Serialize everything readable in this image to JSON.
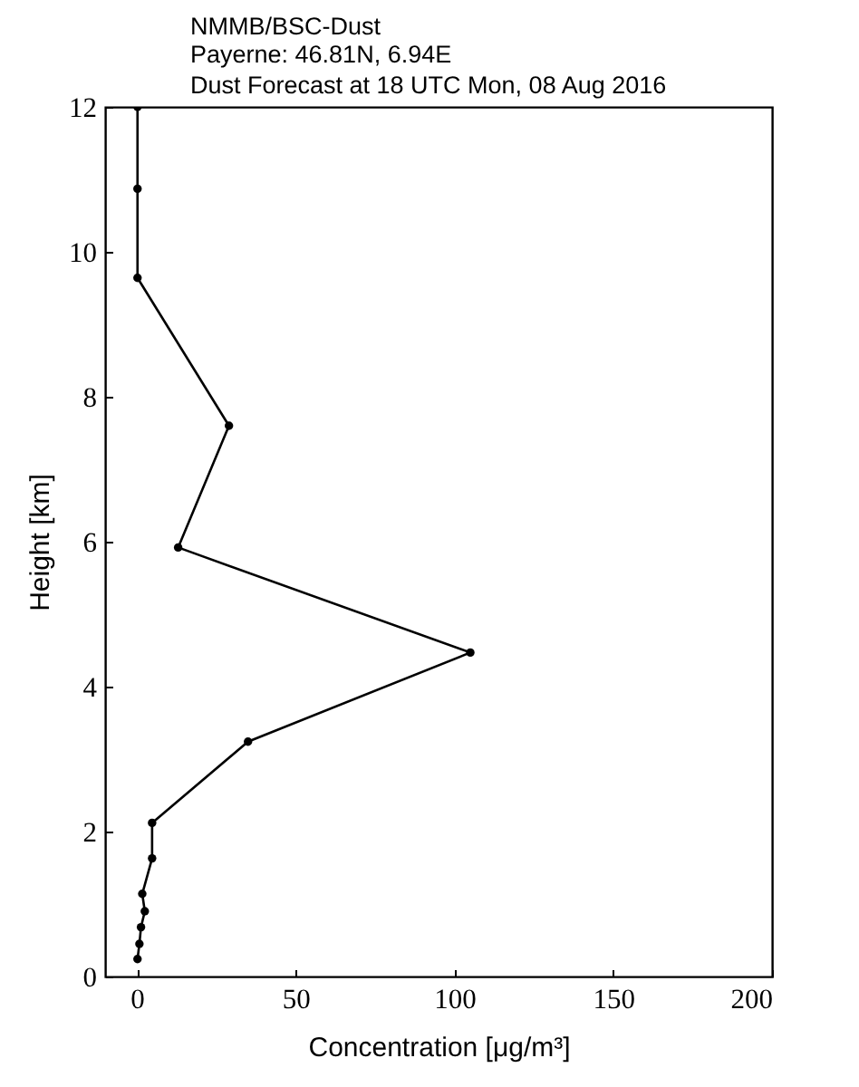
{
  "chart_data": {
    "type": "line",
    "title": "NMMB/BSC-Dust",
    "subtitle": "Payerne: 46.81N, 6.94E\nDust Forecast at 18 UTC Mon, 08 Aug 2016",
    "xlabel": "Concentration [μg/m³]",
    "ylabel": "Height [km]",
    "series": [
      {
        "color": "#000000",
        "x": [
          0.2,
          0.8,
          1.3,
          2.5,
          1.7,
          4.8,
          4.8,
          35,
          105,
          13,
          29,
          0.2,
          0.2,
          0.2
        ],
        "values": [
          0.24,
          0.45,
          0.68,
          0.9,
          1.14,
          1.63,
          2.12,
          3.24,
          4.47,
          5.92,
          7.6,
          9.64,
          10.87,
          12
        ]
      }
    ],
    "xlim": [
      -10,
      200
    ],
    "ylim": [
      0,
      12
    ],
    "xticks": [
      0,
      50,
      100,
      150,
      200
    ],
    "yticks": [
      0,
      2,
      4,
      6,
      8,
      10,
      12
    ],
    "grid": false,
    "marker": "circle",
    "line_style": "solid"
  }
}
